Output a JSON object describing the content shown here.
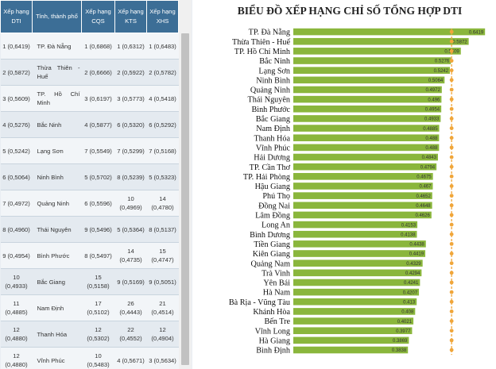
{
  "table": {
    "headers": [
      "Xếp hạng DTI",
      "Tỉnh, thành phố",
      "Xếp hạng CQS",
      "Xếp hạng KTS",
      "Xếp hạng XHS"
    ],
    "rows": [
      {
        "dti": "1 (0,6419)",
        "prov": "TP. Đà Nẵng",
        "cqs": "1 (0,6868)",
        "kts": "1 (0,6312)",
        "xhs": "1 (0,6483)"
      },
      {
        "dti": "2 (0,5872)",
        "prov": "Thừa Thiên - Huế",
        "cqs": "2 (0,6666)",
        "kts": "2 (0,5922)",
        "xhs": "2 (0,5782)"
      },
      {
        "dti": "3 (0,5609)",
        "prov": "TP. Hồ Chí Minh",
        "cqs": "3 (0,6197)",
        "kts": "3 (0,5773)",
        "xhs": "4 (0,5418)"
      },
      {
        "dti": "4 (0,5276)",
        "prov": "Bắc Ninh",
        "cqs": "4 (0,5877)",
        "kts": "6 (0,5320)",
        "xhs": "6 (0,5292)"
      },
      {
        "dti": "5 (0,5242)",
        "prov": "Lạng Sơn",
        "cqs": "7 (0,5549)",
        "kts": "7 (0,5299)",
        "xhs": "7 (0,5168)"
      },
      {
        "dti": "6 (0,5064)",
        "prov": "Ninh Bình",
        "cqs": "5 (0,5702)",
        "kts": "8 (0,5239)",
        "xhs": "5 (0,5323)"
      },
      {
        "dti": "7 (0,4972)",
        "prov": "Quảng Ninh",
        "cqs": "6 (0,5596)",
        "kts": "10 (0,4969)",
        "xhs": "14 (0,4780)"
      },
      {
        "dti": "8 (0,4960)",
        "prov": "Thái Nguyên",
        "cqs": "9 (0,5496)",
        "kts": "5 (0,5364)",
        "xhs": "8 (0,5137)"
      },
      {
        "dti": "9 (0,4954)",
        "prov": "Bình Phước",
        "cqs": "8 (0,5497)",
        "kts": "14 (0,4735)",
        "xhs": "15 (0,4747)"
      },
      {
        "dti": "10 (0,4933)",
        "prov": "Bắc Giang",
        "cqs": "15 (0,5158)",
        "kts": "9 (0,5169)",
        "xhs": "9 (0,5051)"
      },
      {
        "dti": "11 (0,4885)",
        "prov": "Nam Định",
        "cqs": "17 (0,5102)",
        "kts": "26 (0,4443)",
        "xhs": "21 (0,4514)"
      },
      {
        "dti": "12 (0,4880)",
        "prov": "Thanh Hóa",
        "cqs": "12 (0,5302)",
        "kts": "22 (0,4552)",
        "xhs": "12 (0,4904)"
      },
      {
        "dti": "12 (0,4880)",
        "prov": "Vĩnh Phúc",
        "cqs": "10 (0,5483)",
        "kts": "4 (0,5671)",
        "xhs": "3 (0,5634)"
      }
    ]
  },
  "chart_data": {
    "type": "bar",
    "orientation": "horizontal",
    "title": "BIỂU ĐỒ XẾP HẠNG CHỈ SỐ TỔNG HỢP DTI",
    "categories": [
      "TP. Đà Nẵng",
      "Thừa Thiên - Huế",
      "TP. Hồ Chí Minh",
      "Bắc Ninh",
      "Lạng Sơn",
      "Ninh Bình",
      "Quảng Ninh",
      "Thái Nguyên",
      "Bình Phước",
      "Bắc Giang",
      "Nam Định",
      "Thanh Hóa",
      "Vĩnh Phúc",
      "Hải Dương",
      "TP. Cần Thơ",
      "TP. Hải Phòng",
      "Hậu Giang",
      "Phú Thọ",
      "Đồng Nai",
      "Lâm Đồng",
      "Long An",
      "Bình Dương",
      "Tiền Giang",
      "Kiên Giang",
      "Quảng Nam",
      "Trà Vinh",
      "Yên Bái",
      "Hà Nam",
      "Bà Rịa - Vũng Tàu",
      "Khánh Hòa",
      "Bến Tre",
      "Vĩnh Long",
      "Hà Giang",
      "Bình Định"
    ],
    "values": [
      0.6419,
      0.5872,
      0.5609,
      0.5276,
      0.5242,
      0.5064,
      0.4972,
      0.496,
      0.4954,
      0.4933,
      0.4885,
      0.488,
      0.488,
      0.4843,
      0.4794,
      0.4675,
      0.467,
      0.4652,
      0.4648,
      0.4626,
      0.4153,
      0.4138,
      0.4438,
      0.4419,
      0.4329,
      0.4294,
      0.4241,
      0.4207,
      0.413,
      0.408,
      0.4021,
      0.3977,
      0.3869,
      0.3838
    ],
    "value_labels": [
      "0.6419",
      "0.5872",
      "0.5609",
      "0.5276",
      "0.5242",
      "0.5064",
      "0.4972",
      "0.496",
      "0.4954",
      "0.4933",
      "0.4885",
      "0.488",
      "0.488",
      "0.4843",
      "0.4794",
      "0.4675",
      "0.467",
      "0.4652",
      "0.4648",
      "0.4626",
      "0.4153",
      "0.4138",
      "0.4438",
      "0.4419",
      "0.4329",
      "0.4294",
      "0.4241",
      "0.4207",
      "0.413",
      "0.408",
      "0.4021",
      "0.3977",
      "0.3869",
      "0.3838"
    ],
    "xlim": [
      0,
      0.66
    ],
    "reference_value": 0.53,
    "colors": {
      "bar": "#8ab63c",
      "reference_line": "#f0a63a"
    }
  }
}
